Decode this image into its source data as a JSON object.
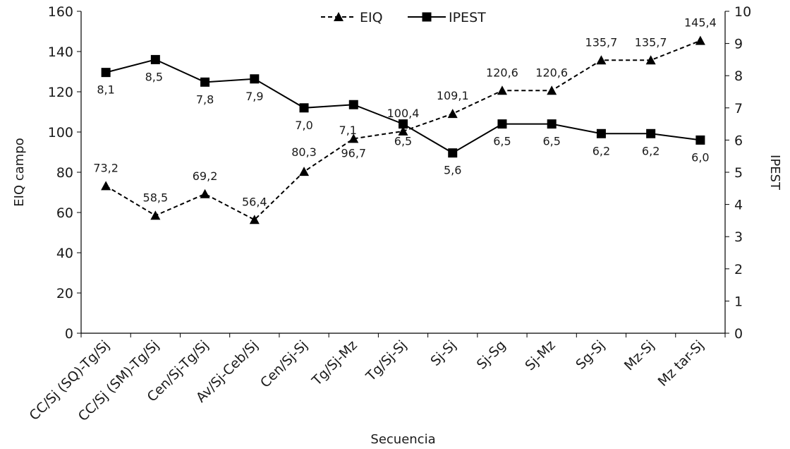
{
  "chart_data": {
    "type": "line",
    "xlabel": "Secuencia",
    "ylabel_left": "EIQ campo",
    "ylabel_right": "IPEST",
    "ylim_left": [
      0,
      160
    ],
    "ylim_right": [
      0,
      10
    ],
    "yticks_left": [
      "0",
      "20",
      "40",
      "60",
      "80",
      "100",
      "120",
      "140",
      "160"
    ],
    "yticks_right": [
      "0",
      "1",
      "2",
      "3",
      "4",
      "5",
      "6",
      "7",
      "8",
      "9",
      "10"
    ],
    "categories": [
      "CC/Sj (SQ)-Tg/Sj",
      "CC/Sj (SM)-Tg/Sj",
      "Cen/Sj-Tg/Sj",
      "Av/Sj-Ceb/Sj",
      "Cen/Sj-Sj",
      "Tg/Sj-Mz",
      "Tg/Sj-Sj",
      "Sj-Sj",
      "Sj-Sg",
      "Sj-Mz",
      "Sg-Sj",
      "Mz-Sj",
      "Mz tar-Sj"
    ],
    "grid": false,
    "legend_position": "top-center",
    "series": [
      {
        "name": "EIQ",
        "axis": "left",
        "style": "dashed",
        "marker": "triangle",
        "color": "#000000",
        "values": [
          73.2,
          58.5,
          69.2,
          56.4,
          80.3,
          96.7,
          100.4,
          109.1,
          120.6,
          120.6,
          135.7,
          135.7,
          145.4
        ],
        "labels": [
          "73,2",
          "58,5",
          "69,2",
          "56,4",
          "80,3",
          "96,7",
          "100,4",
          "109,1",
          "120,6",
          "120,6",
          "135,7",
          "135,7",
          "145,4"
        ]
      },
      {
        "name": "IPEST",
        "axis": "right",
        "style": "solid",
        "marker": "square",
        "color": "#000000",
        "values": [
          8.1,
          8.5,
          7.8,
          7.9,
          7.0,
          7.1,
          6.5,
          5.6,
          6.5,
          6.5,
          6.2,
          6.2,
          6.0
        ],
        "labels": [
          "8,1",
          "8,5",
          "7,8",
          "7,9",
          "7,0",
          "7,1",
          "6,5",
          "5,6",
          "6,5",
          "6,5",
          "6,2",
          "6,2",
          "6,0"
        ]
      }
    ]
  }
}
